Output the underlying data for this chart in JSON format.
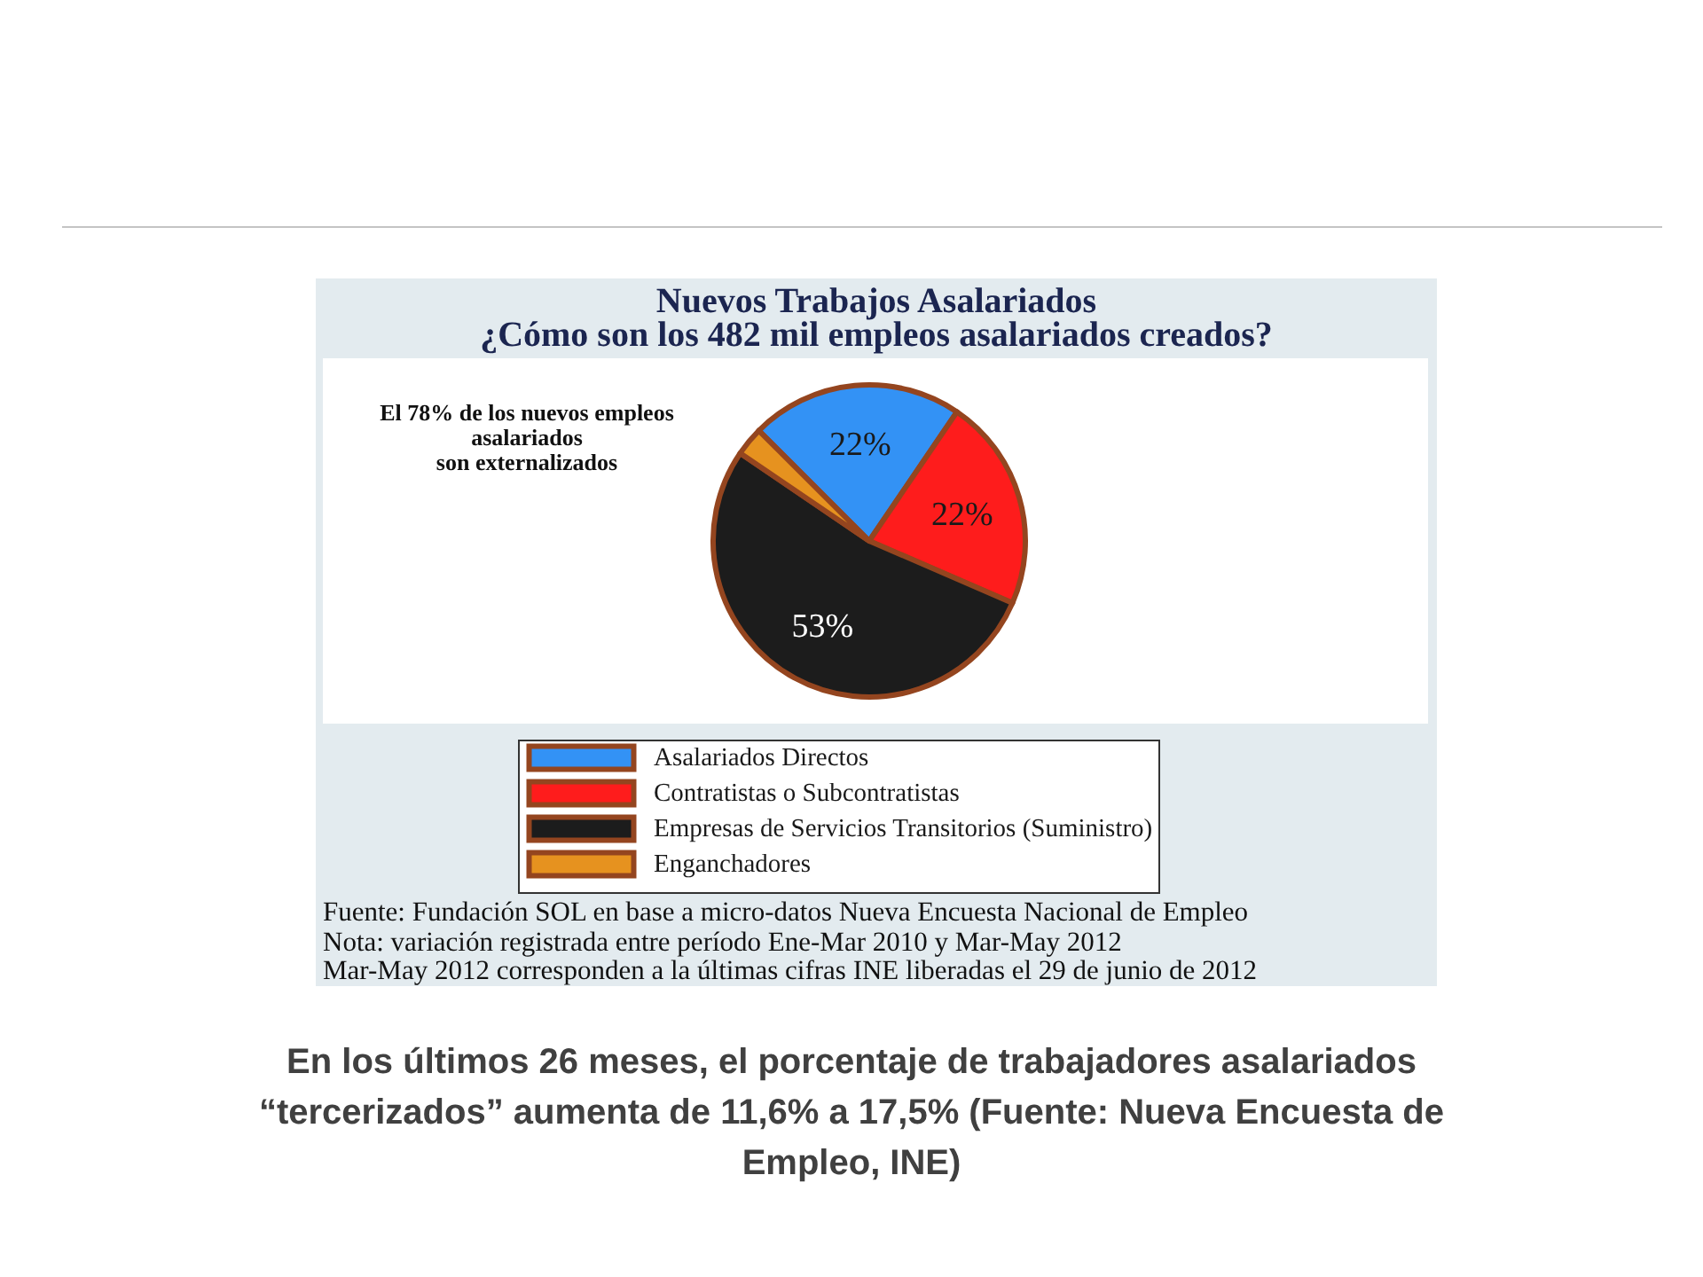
{
  "chart_data": {
    "type": "pie",
    "title": "Nuevos Trabajos Asalariados",
    "subtitle": "¿Cómo son los 482 mil empleos asalariados creados?",
    "categories": [
      "Asalariados Directos",
      "Contratistas o Subcontratistas",
      "Empresas de Servicios Transitorios (Suministro)",
      "Enganchadores"
    ],
    "values": [
      22,
      22,
      53,
      3
    ],
    "colors": [
      "#3392f5",
      "#fe1c1c",
      "#1c1c1c",
      "#e6921f"
    ],
    "value_labels": [
      "22%",
      "22%",
      "53%",
      null
    ],
    "legend": "bottom",
    "annotations": [
      "El 78% de los nuevos empleos\nasalariados\nson externalizados",
      "Fuente: Fundación SOL en base a micro-datos Nueva Encuesta Nacional de Empleo",
      "Nota: variación registrada entre período Ene-Mar 2010 y Mar-May 2012",
      "Mar-May 2012 corresponden a la últimas cifras INE liberadas el 29 de junio de 2012",
      "En los últimos 26 meses, el porcentaje de trabajadores asalariados\n“tercerizados” aumenta de 11,6% a 17,5% (Fuente: Nueva Encuesta de\nEmpleo, INE)"
    ]
  }
}
